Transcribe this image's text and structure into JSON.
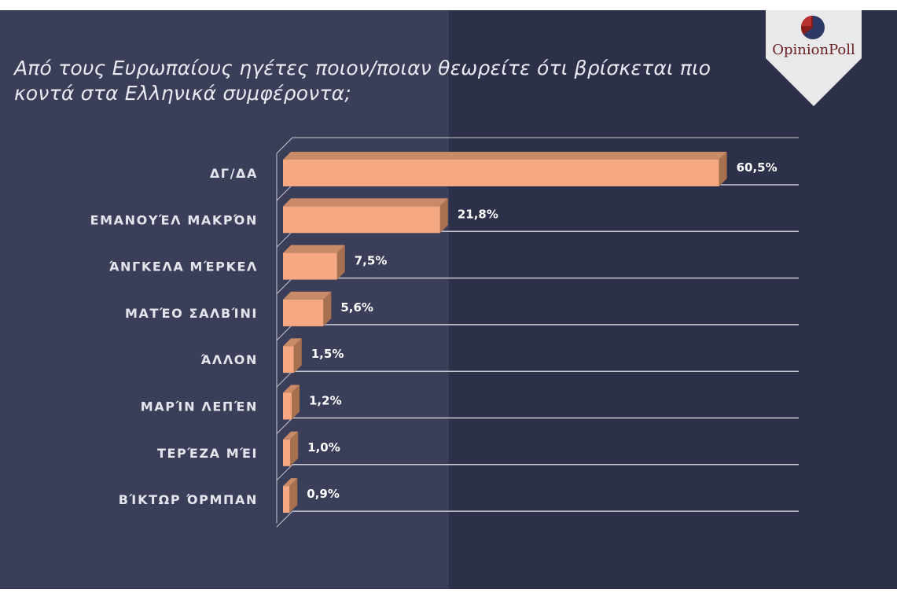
{
  "brand": {
    "name_part1": "Opinion",
    "name_part2": "Poll",
    "accent": "#8b1c1c",
    "secondary": "#2e3a66"
  },
  "colors": {
    "bar_front": "#f5a882",
    "bar_top": "#c98a67",
    "bar_side": "#a7714f",
    "grid": "#c8c9d2"
  },
  "chart_data": {
    "type": "bar",
    "orientation": "horizontal",
    "title": "Από τους Ευρωπαίους ηγέτες ποιον/ποιαν θεωρείτε ότι βρίσκεται πιο κοντά στα Ελληνικά συμφέροντα;",
    "categories": [
      "ΔΓ/ΔΑ",
      "ΕΜΑΝΟΥΈΛ  ΜΑΚΡΌΝ",
      "ΆΝΓΚΕΛΑ ΜΈΡΚΕΛ",
      "ΜΑΤΈΟ  ΣΑΛΒΊΝΙ",
      "ΆΛΛΟΝ",
      "ΜΑΡΊΝ ΛΕΠΈΝ",
      "ΤΕΡΈΖΑ ΜΈΙ",
      "ΒΊΚΤΩΡ ΌΡΜΠΑΝ"
    ],
    "values": [
      60.5,
      21.8,
      7.5,
      5.6,
      1.5,
      1.2,
      1.0,
      0.9
    ],
    "value_labels": [
      "60,5%",
      "21,8%",
      "7,5%",
      "5,6%",
      "1,5%",
      "1,2%",
      "1,0%",
      "0,9%"
    ],
    "xlim": [
      0,
      72
    ],
    "unit": "%",
    "grid": true,
    "legend": "none"
  }
}
